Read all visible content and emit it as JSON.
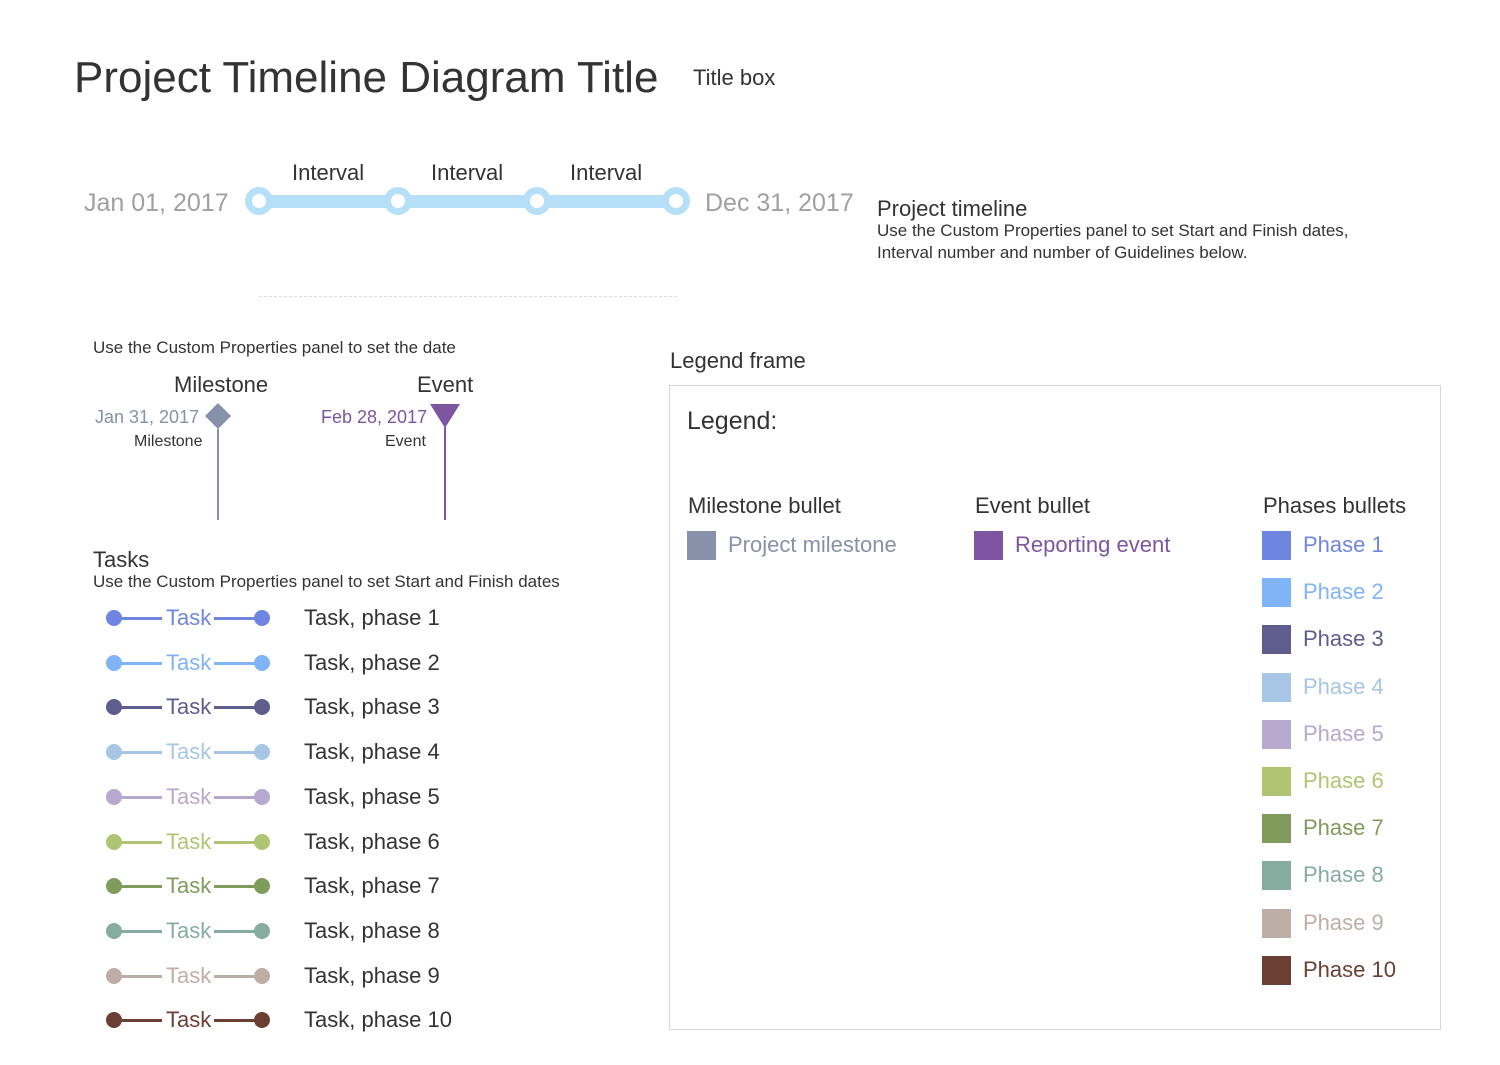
{
  "title": {
    "text": "Project Timeline Diagram Title",
    "box_label": "Title box"
  },
  "timeline": {
    "start_date": "Jan 01, 2017",
    "end_date": "Dec 31, 2017",
    "intervals": [
      "Interval",
      "Interval",
      "Interval"
    ],
    "bar_color": "#b6dff8",
    "note_title": "Project timeline",
    "note_lines": [
      "Use the Custom Properties panel to set Start and Finish dates,",
      "Interval number and number of Guidelines below."
    ]
  },
  "milestone_event": {
    "note": "Use the Custom Properties panel to set the date",
    "milestone": {
      "heading": "Milestone",
      "date": "Jan 31, 2017",
      "caption": "Milestone",
      "color": "#8791aa"
    },
    "event": {
      "heading": "Event",
      "date": "Feb 28, 2017",
      "caption": "Event",
      "color": "#7d55a0"
    }
  },
  "tasks": {
    "heading": "Tasks",
    "note": "Use the Custom Properties panel to set Start and Finish dates",
    "items": [
      {
        "label": "Task",
        "description": "Task, phase 1",
        "color": "#6f86e0"
      },
      {
        "label": "Task",
        "description": "Task, phase 2",
        "color": "#80b4f8"
      },
      {
        "label": "Task",
        "description": "Task, phase 3",
        "color": "#5e5d8e"
      },
      {
        "label": "Task",
        "description": "Task, phase 4",
        "color": "#a7c5e4"
      },
      {
        "label": "Task",
        "description": "Task, phase 5",
        "color": "#b7a8cf"
      },
      {
        "label": "Task",
        "description": "Task, phase 6",
        "color": "#afc573"
      },
      {
        "label": "Task",
        "description": "Task, phase 7",
        "color": "#809c5c"
      },
      {
        "label": "Task",
        "description": "Task, phase 8",
        "color": "#86aca0"
      },
      {
        "label": "Task",
        "description": "Task, phase 9",
        "color": "#bfaea8"
      },
      {
        "label": "Task",
        "description": "Task, phase 10",
        "color": "#6b4033"
      }
    ]
  },
  "legend": {
    "frame_label": "Legend frame",
    "title": "Legend:",
    "milestone_column": {
      "heading": "Milestone bullet",
      "item": {
        "label": "Project milestone",
        "color": "#8791aa"
      }
    },
    "event_column": {
      "heading": "Event bullet",
      "item": {
        "label": "Reporting event",
        "color": "#7d55a0"
      }
    },
    "phases_column": {
      "heading": "Phases bullets",
      "items": [
        {
          "label": "Phase 1",
          "color": "#6f86e0"
        },
        {
          "label": "Phase 2",
          "color": "#80b4f8"
        },
        {
          "label": "Phase 3",
          "color": "#5e5d8e"
        },
        {
          "label": "Phase 4",
          "color": "#a7c5e4"
        },
        {
          "label": "Phase 5",
          "color": "#b7a8cf"
        },
        {
          "label": "Phase 6",
          "color": "#afc573"
        },
        {
          "label": "Phase 7",
          "color": "#809c5c"
        },
        {
          "label": "Phase 8",
          "color": "#86aca0"
        },
        {
          "label": "Phase 9",
          "color": "#bfaea8"
        },
        {
          "label": "Phase 10",
          "color": "#6b4033"
        }
      ]
    }
  }
}
